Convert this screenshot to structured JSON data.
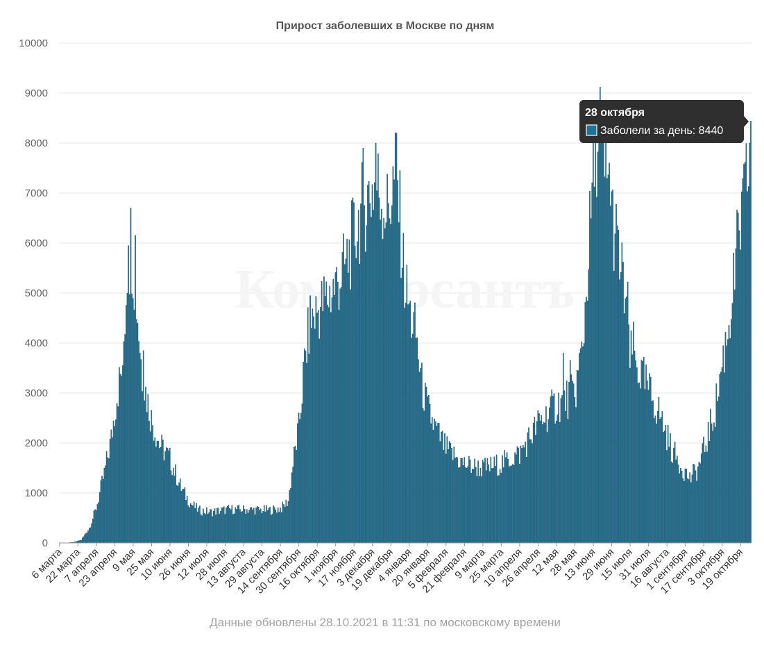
{
  "footer": "Данные обновлены 28.10.2021 в 11:31 по московскому времени",
  "watermark": "Коммерсантъ",
  "tooltip": {
    "date": "28 октября",
    "series_label": "Заболели за день",
    "value_text": "8440"
  },
  "colors": {
    "bar": "#1f7396",
    "bar_edge": "#113f57",
    "grid": "#e5e5e5",
    "tooltip_bg": "#2f2f2f"
  },
  "chart_data": {
    "type": "bar",
    "title": "Прирост заболевших в Москве по дням",
    "xlabel": "",
    "ylabel": "",
    "ylim": [
      0,
      10000
    ],
    "yticks": [
      0,
      1000,
      2000,
      3000,
      4000,
      5000,
      6000,
      7000,
      8000,
      9000,
      10000
    ],
    "x_start": "2020-03-06",
    "x_end": "2021-10-28",
    "xtick_labels": [
      "6 марта",
      "22 марта",
      "7 апреля",
      "23 апреля",
      "9 мая",
      "25 мая",
      "10 июня",
      "26 июня",
      "12 июля",
      "28 июля",
      "13 августа",
      "29 августа",
      "14 сентября",
      "30 сентября",
      "16 октября",
      "1 ноября",
      "17 ноября",
      "3 декабря",
      "19 декабря",
      "4 января",
      "20 января",
      "5 февраля",
      "21 февраля",
      "9 марта",
      "25 марта",
      "10 апреля",
      "26 апреля",
      "12 мая",
      "28 мая",
      "13 июня",
      "29 июня",
      "15 июля",
      "31 июля",
      "16 августа",
      "1 сентября",
      "17 сентября",
      "3 октября",
      "19 октября"
    ],
    "series": [
      {
        "name": "Заболели за день",
        "keypoints": [
          [
            "2020-03-06",
            0
          ],
          [
            "2020-03-18",
            10
          ],
          [
            "2020-03-25",
            60
          ],
          [
            "2020-04-01",
            300
          ],
          [
            "2020-04-07",
            700
          ],
          [
            "2020-04-14",
            1400
          ],
          [
            "2020-04-20",
            2100
          ],
          [
            "2020-04-25",
            3000
          ],
          [
            "2020-04-30",
            3600
          ],
          [
            "2020-05-04",
            5600
          ],
          [
            "2020-05-08",
            5900
          ],
          [
            "2020-05-12",
            4900
          ],
          [
            "2020-05-17",
            3400
          ],
          [
            "2020-05-25",
            2500
          ],
          [
            "2020-06-01",
            2000
          ],
          [
            "2020-06-10",
            1700
          ],
          [
            "2020-06-20",
            1100
          ],
          [
            "2020-06-28",
            800
          ],
          [
            "2020-07-05",
            660
          ],
          [
            "2020-07-15",
            620
          ],
          [
            "2020-08-01",
            680
          ],
          [
            "2020-08-20",
            670
          ],
          [
            "2020-09-05",
            660
          ],
          [
            "2020-09-15",
            700
          ],
          [
            "2020-09-21",
            850
          ],
          [
            "2020-09-25",
            1600
          ],
          [
            "2020-09-30",
            2300
          ],
          [
            "2020-10-05",
            3600
          ],
          [
            "2020-10-10",
            4500
          ],
          [
            "2020-10-20",
            4800
          ],
          [
            "2020-11-01",
            5200
          ],
          [
            "2020-11-10",
            5600
          ],
          [
            "2020-11-17",
            6200
          ],
          [
            "2020-11-25",
            6800
          ],
          [
            "2020-12-06",
            7300
          ],
          [
            "2020-12-16",
            6700
          ],
          [
            "2020-12-24",
            7500
          ],
          [
            "2020-12-31",
            5300
          ],
          [
            "2021-01-05",
            4600
          ],
          [
            "2021-01-10",
            4200
          ],
          [
            "2021-01-15",
            3200
          ],
          [
            "2021-01-20",
            2700
          ],
          [
            "2021-01-27",
            2300
          ],
          [
            "2021-02-05",
            1900
          ],
          [
            "2021-02-20",
            1600
          ],
          [
            "2021-03-09",
            1500
          ],
          [
            "2021-03-25",
            1600
          ],
          [
            "2021-04-10",
            1800
          ],
          [
            "2021-04-26",
            2400
          ],
          [
            "2021-05-12",
            2800
          ],
          [
            "2021-05-28",
            3000
          ],
          [
            "2021-06-04",
            4000
          ],
          [
            "2021-06-08",
            5500
          ],
          [
            "2021-06-12",
            7000
          ],
          [
            "2021-06-16",
            8200
          ],
          [
            "2021-06-20",
            7800
          ],
          [
            "2021-06-25",
            7200
          ],
          [
            "2021-06-29",
            6700
          ],
          [
            "2021-07-05",
            5800
          ],
          [
            "2021-07-12",
            4800
          ],
          [
            "2021-07-20",
            3600
          ],
          [
            "2021-07-31",
            3100
          ],
          [
            "2021-08-10",
            2600
          ],
          [
            "2021-08-20",
            1900
          ],
          [
            "2021-08-30",
            1500
          ],
          [
            "2021-09-05",
            1300
          ],
          [
            "2021-09-12",
            1500
          ],
          [
            "2021-09-20",
            2100
          ],
          [
            "2021-09-27",
            2700
          ],
          [
            "2021-10-03",
            3600
          ],
          [
            "2021-10-08",
            4300
          ],
          [
            "2021-10-13",
            5200
          ],
          [
            "2021-10-18",
            6300
          ],
          [
            "2021-10-22",
            6800
          ],
          [
            "2021-10-25",
            7400
          ],
          [
            "2021-10-28",
            8440
          ]
        ],
        "peaks": [
          [
            "2020-04-30",
            3550
          ],
          [
            "2020-05-07",
            6700
          ],
          [
            "2020-05-11",
            6150
          ],
          [
            "2020-05-05",
            5950
          ],
          [
            "2020-05-18",
            3850
          ],
          [
            "2020-12-06",
            8000
          ],
          [
            "2020-12-24",
            8200
          ],
          [
            "2020-11-25",
            7900
          ],
          [
            "2021-06-19",
            9120
          ],
          [
            "2021-06-22",
            8500
          ],
          [
            "2021-06-27",
            7600
          ],
          [
            "2021-05-18",
            3800
          ],
          [
            "2021-05-24",
            3650
          ],
          [
            "2021-07-15",
            3500
          ],
          [
            "2021-10-27",
            8000
          ]
        ]
      }
    ]
  }
}
